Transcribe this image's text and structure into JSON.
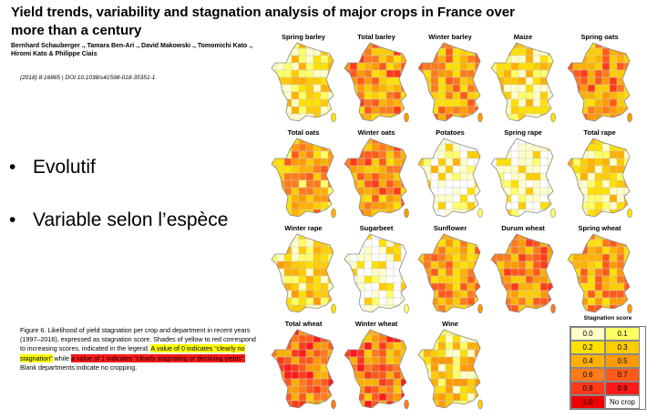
{
  "header": {
    "title": "Yield trends, variability and stagnation analysis of major crops in France over more than a century",
    "authors": "Bernhard Schauberger ., Tamara Ben-Ari ., David Makowski ., Tomomichi Kato ., Hiromi Kato & Philippe  Ciais",
    "citation": "(2018) 8:16865 | DOI:10.1038/s41598-018-35351-1"
  },
  "bullets": [
    {
      "label": "Evolutif"
    },
    {
      "label": "Variable selon l’espèce"
    }
  ],
  "caption": {
    "part1": "Figure 6. Likelihood of yield stagnation per crop and department in recent years (1997–2016), expressed as stagnation score. Shades of yellow to red correspond to increasing scores, indicated in the legend.",
    "part2": "A value of 0 indicates “clearly no stagnation”",
    "part3": " while ",
    "part4": "a value of 1 indicates “clearly stagnating or declining yields”.",
    "part5": " Blank departments indicate no cropping."
  },
  "maps": [
    {
      "label": "Spring barley",
      "level": 0.15
    },
    {
      "label": "Total barley",
      "level": 0.5
    },
    {
      "label": "Winter barley",
      "level": 0.45
    },
    {
      "label": "Maize",
      "level": 0.15
    },
    {
      "label": "Spring oats",
      "level": 0.5
    },
    {
      "label": "Total oats",
      "level": 0.4
    },
    {
      "label": "Winter oats",
      "level": 0.5
    },
    {
      "label": "Potatoes",
      "level": 0.1
    },
    {
      "label": "Spring rape",
      "level": 0.05
    },
    {
      "label": "Total rape",
      "level": 0.15
    },
    {
      "label": "Winter rape",
      "level": 0.2
    },
    {
      "label": "Sugarbeet",
      "level": 0.05
    },
    {
      "label": "Sunflower",
      "level": 0.45
    },
    {
      "label": "Durum wheat",
      "level": 0.55
    },
    {
      "label": "Spring wheat",
      "level": 0.45
    },
    {
      "label": "Total wheat",
      "level": 0.6
    },
    {
      "label": "Winter wheat",
      "level": 0.6
    },
    {
      "label": "Wine",
      "level": 0.25
    }
  ],
  "legend": {
    "title": "Stagnation score",
    "cells": [
      {
        "text": "0.0",
        "color": "#ffffc8"
      },
      {
        "text": "0.1",
        "color": "#ffff66"
      },
      {
        "text": "0.2",
        "color": "#ffe000"
      },
      {
        "text": "0.3",
        "color": "#ffcc00"
      },
      {
        "text": "0.4",
        "color": "#ffb000"
      },
      {
        "text": "0.5",
        "color": "#ff9a00"
      },
      {
        "text": "0.6",
        "color": "#ff7a1a"
      },
      {
        "text": "0.7",
        "color": "#ff5a1a"
      },
      {
        "text": "0.8",
        "color": "#ff3a1a"
      },
      {
        "text": "0.9",
        "color": "#ff1a1a"
      },
      {
        "text": "1.0",
        "color": "#ee0000"
      },
      {
        "text": "No crop",
        "color": "#ffffff"
      }
    ]
  }
}
